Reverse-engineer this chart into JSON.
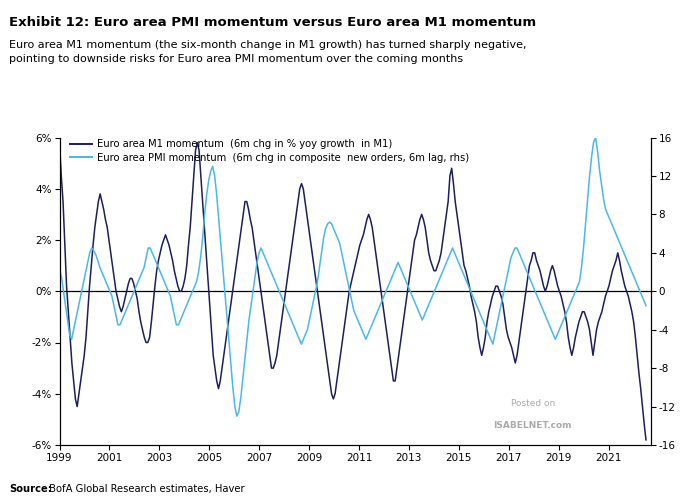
{
  "title_bold": "Exhibit 12: Euro area PMI momentum versus Euro area M1 momentum",
  "subtitle": "Euro area M1 momentum (the six-month change in M1 growth) has turned sharply negative,\npointing to downside risks for Euro area PMI momentum over the coming months",
  "legend_m1": "Euro area M1 momentum  (6m chg in % yoy growth  in M1)",
  "legend_pmi": "Euro area PMI momentum  (6m chg in composite  new orders, 6m lag, rhs)",
  "source_bold": "Source:",
  "source_rest": " BofA Global Research estimates, Haver",
  "m1_color": "#1b1f5e",
  "pmi_color": "#4ab8e8",
  "ylim_left": [
    -6,
    6
  ],
  "ylim_right": [
    -16,
    16
  ],
  "yticks_left": [
    -6,
    -4,
    -2,
    0,
    2,
    4,
    6
  ],
  "yticks_right": [
    -16,
    -12,
    -8,
    -4,
    0,
    4,
    8,
    12,
    16
  ],
  "background_color": "#ffffff",
  "watermark_line1": "Posted on",
  "watermark_line2": "ISABELNET.com",
  "m1_data": [
    5.8,
    4.5,
    3.5,
    1.8,
    0.2,
    -0.8,
    -1.8,
    -2.8,
    -3.5,
    -4.2,
    -4.5,
    -4.0,
    -3.5,
    -3.0,
    -2.5,
    -1.8,
    -0.8,
    0.2,
    1.0,
    1.8,
    2.5,
    3.0,
    3.5,
    3.8,
    3.5,
    3.2,
    2.8,
    2.5,
    2.0,
    1.5,
    1.0,
    0.5,
    0.0,
    -0.3,
    -0.6,
    -0.8,
    -0.6,
    -0.3,
    0.0,
    0.3,
    0.5,
    0.5,
    0.3,
    0.0,
    -0.3,
    -0.8,
    -1.2,
    -1.5,
    -1.8,
    -2.0,
    -2.0,
    -1.8,
    -1.2,
    -0.5,
    0.2,
    0.8,
    1.2,
    1.5,
    1.8,
    2.0,
    2.2,
    2.0,
    1.8,
    1.5,
    1.2,
    0.8,
    0.5,
    0.2,
    0.0,
    0.0,
    0.2,
    0.5,
    1.0,
    1.8,
    2.5,
    3.5,
    4.5,
    5.5,
    5.8,
    5.5,
    4.5,
    3.5,
    2.5,
    1.5,
    0.5,
    -0.5,
    -1.5,
    -2.5,
    -3.0,
    -3.5,
    -3.8,
    -3.5,
    -3.0,
    -2.5,
    -2.0,
    -1.5,
    -1.0,
    -0.5,
    0.0,
    0.5,
    1.0,
    1.5,
    2.0,
    2.5,
    3.0,
    3.5,
    3.5,
    3.2,
    2.8,
    2.5,
    2.0,
    1.5,
    1.0,
    0.5,
    0.0,
    -0.5,
    -1.0,
    -1.5,
    -2.0,
    -2.5,
    -3.0,
    -3.0,
    -2.8,
    -2.5,
    -2.0,
    -1.5,
    -1.0,
    -0.5,
    0.0,
    0.5,
    1.0,
    1.5,
    2.0,
    2.5,
    3.0,
    3.5,
    4.0,
    4.2,
    4.0,
    3.5,
    3.0,
    2.5,
    2.0,
    1.5,
    1.0,
    0.5,
    0.0,
    -0.5,
    -1.0,
    -1.5,
    -2.0,
    -2.5,
    -3.0,
    -3.5,
    -4.0,
    -4.2,
    -4.0,
    -3.5,
    -3.0,
    -2.5,
    -2.0,
    -1.5,
    -1.0,
    -0.5,
    0.0,
    0.3,
    0.6,
    0.9,
    1.2,
    1.5,
    1.8,
    2.0,
    2.2,
    2.5,
    2.8,
    3.0,
    2.8,
    2.5,
    2.0,
    1.5,
    1.0,
    0.5,
    0.0,
    -0.5,
    -1.0,
    -1.5,
    -2.0,
    -2.5,
    -3.0,
    -3.5,
    -3.5,
    -3.0,
    -2.5,
    -2.0,
    -1.5,
    -1.0,
    -0.5,
    0.0,
    0.5,
    1.0,
    1.5,
    2.0,
    2.2,
    2.5,
    2.8,
    3.0,
    2.8,
    2.5,
    2.0,
    1.5,
    1.2,
    1.0,
    0.8,
    0.8,
    1.0,
    1.2,
    1.5,
    2.0,
    2.5,
    3.0,
    3.5,
    4.5,
    4.8,
    4.2,
    3.5,
    3.0,
    2.5,
    2.0,
    1.5,
    1.0,
    0.8,
    0.5,
    0.2,
    -0.2,
    -0.5,
    -0.8,
    -1.2,
    -1.8,
    -2.2,
    -2.5,
    -2.2,
    -1.8,
    -1.2,
    -0.8,
    -0.5,
    -0.2,
    0.0,
    0.2,
    0.2,
    0.0,
    -0.2,
    -0.5,
    -1.0,
    -1.5,
    -1.8,
    -2.0,
    -2.2,
    -2.5,
    -2.8,
    -2.5,
    -2.0,
    -1.5,
    -1.0,
    -0.5,
    0.0,
    0.5,
    1.0,
    1.2,
    1.5,
    1.5,
    1.2,
    1.0,
    0.8,
    0.5,
    0.2,
    0.0,
    0.2,
    0.5,
    0.8,
    1.0,
    0.8,
    0.5,
    0.2,
    0.0,
    -0.2,
    -0.5,
    -0.8,
    -1.2,
    -1.8,
    -2.2,
    -2.5,
    -2.2,
    -1.8,
    -1.5,
    -1.2,
    -1.0,
    -0.8,
    -0.8,
    -1.0,
    -1.2,
    -1.5,
    -2.0,
    -2.5,
    -2.0,
    -1.5,
    -1.2,
    -1.0,
    -0.8,
    -0.5,
    -0.2,
    0.0,
    0.2,
    0.5,
    0.8,
    1.0,
    1.2,
    1.5,
    1.2,
    0.8,
    0.5,
    0.2,
    0.0,
    -0.2,
    -0.5,
    -0.8,
    -1.2,
    -1.8,
    -2.5,
    -3.2,
    -3.8,
    -4.5,
    -5.2,
    -5.8
  ],
  "pmi_data": [
    2.2,
    1.5,
    0.0,
    -1.5,
    -3.0,
    -4.5,
    -5.0,
    -4.0,
    -3.0,
    -2.0,
    -1.0,
    0.0,
    1.0,
    2.0,
    3.0,
    4.0,
    4.5,
    4.2,
    3.8,
    3.2,
    2.5,
    2.0,
    1.5,
    1.0,
    0.5,
    0.0,
    -0.5,
    -1.5,
    -2.5,
    -3.5,
    -3.5,
    -3.0,
    -2.5,
    -2.0,
    -1.5,
    -1.0,
    -0.5,
    0.0,
    0.5,
    1.0,
    1.5,
    2.0,
    2.5,
    3.5,
    4.5,
    4.5,
    4.0,
    3.5,
    3.0,
    2.5,
    2.0,
    1.5,
    1.0,
    0.5,
    0.0,
    -0.5,
    -1.5,
    -2.5,
    -3.5,
    -3.5,
    -3.0,
    -2.5,
    -2.0,
    -1.5,
    -1.0,
    -0.5,
    0.0,
    0.5,
    1.0,
    2.0,
    3.5,
    5.5,
    8.0,
    10.0,
    11.5,
    12.5,
    13.0,
    12.0,
    10.0,
    7.5,
    5.0,
    2.5,
    0.0,
    -2.5,
    -5.0,
    -7.5,
    -10.0,
    -12.0,
    -13.0,
    -12.5,
    -11.0,
    -9.0,
    -7.0,
    -5.0,
    -3.0,
    -1.5,
    0.0,
    1.5,
    3.0,
    4.0,
    4.5,
    4.0,
    3.5,
    3.0,
    2.5,
    2.0,
    1.5,
    1.0,
    0.5,
    0.0,
    -0.5,
    -1.0,
    -1.5,
    -2.0,
    -2.5,
    -3.0,
    -3.5,
    -4.0,
    -4.5,
    -5.0,
    -5.5,
    -5.0,
    -4.5,
    -4.0,
    -3.0,
    -2.0,
    -1.0,
    0.0,
    1.0,
    2.5,
    4.0,
    5.5,
    6.5,
    7.0,
    7.2,
    7.0,
    6.5,
    6.0,
    5.5,
    5.0,
    4.0,
    3.0,
    2.0,
    1.0,
    0.0,
    -1.0,
    -2.0,
    -2.5,
    -3.0,
    -3.5,
    -4.0,
    -4.5,
    -5.0,
    -4.5,
    -4.0,
    -3.5,
    -3.0,
    -2.5,
    -2.0,
    -1.5,
    -1.0,
    -0.5,
    0.0,
    0.5,
    1.0,
    1.5,
    2.0,
    2.5,
    3.0,
    2.5,
    2.0,
    1.5,
    1.0,
    0.5,
    0.0,
    -0.5,
    -1.0,
    -1.5,
    -2.0,
    -2.5,
    -3.0,
    -2.5,
    -2.0,
    -1.5,
    -1.0,
    -0.5,
    0.0,
    0.5,
    1.0,
    1.5,
    2.0,
    2.5,
    3.0,
    3.5,
    4.0,
    4.5,
    4.0,
    3.5,
    3.0,
    2.5,
    2.0,
    1.5,
    1.0,
    0.5,
    0.0,
    -0.5,
    -1.0,
    -1.5,
    -2.0,
    -2.5,
    -3.0,
    -3.5,
    -4.0,
    -4.5,
    -5.0,
    -5.5,
    -4.5,
    -3.5,
    -2.5,
    -1.5,
    -0.5,
    0.5,
    1.5,
    2.5,
    3.5,
    4.0,
    4.5,
    4.5,
    4.0,
    3.5,
    3.0,
    2.5,
    2.0,
    1.5,
    1.0,
    0.5,
    0.0,
    -0.5,
    -1.0,
    -1.5,
    -2.0,
    -2.5,
    -3.0,
    -3.5,
    -4.0,
    -4.5,
    -5.0,
    -4.5,
    -4.0,
    -3.5,
    -3.0,
    -2.5,
    -2.0,
    -1.5,
    -1.0,
    -0.5,
    0.0,
    0.5,
    1.0,
    2.5,
    4.5,
    7.0,
    9.5,
    12.0,
    14.0,
    15.5,
    16.0,
    14.5,
    12.5,
    11.0,
    9.5,
    8.5,
    8.0,
    7.5,
    7.0,
    6.5,
    6.0,
    5.5,
    5.0,
    4.5,
    4.0,
    3.5,
    3.0,
    2.5,
    2.0,
    1.5,
    1.0,
    0.5,
    0.0,
    -0.5,
    -1.0,
    -1.5
  ]
}
